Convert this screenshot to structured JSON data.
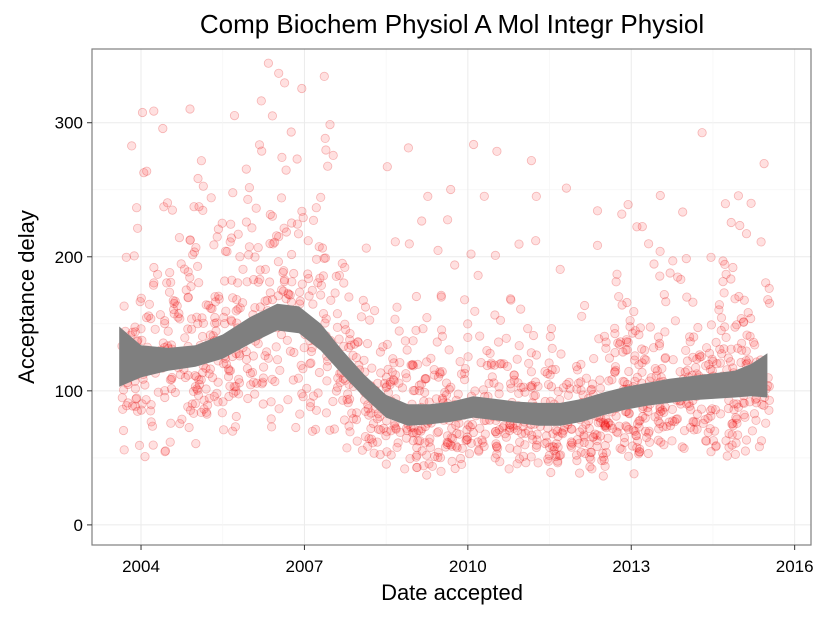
{
  "chart_data": {
    "type": "scatter",
    "title": "Comp Biochem Physiol A Mol Integr Physiol",
    "xlabel": "Date accepted",
    "ylabel": "Acceptance delay",
    "xlim": [
      2003.1,
      2016.3
    ],
    "ylim": [
      -15,
      355
    ],
    "x_ticks": [
      2004,
      2007,
      2010,
      2013,
      2016
    ],
    "x_tick_labels": [
      "2004",
      "2007",
      "2010",
      "2013",
      "2016"
    ],
    "y_ticks": [
      0,
      100,
      200,
      300
    ],
    "y_tick_labels": [
      "0",
      "100",
      "200",
      "300"
    ],
    "grid": true,
    "point_color": "#ff0000",
    "smooth_color": "#7f7f7f",
    "smooth": {
      "x": [
        2003.6,
        2004.0,
        2004.5,
        2005.0,
        2005.5,
        2006.0,
        2006.5,
        2006.9,
        2007.3,
        2007.7,
        2008.1,
        2008.5,
        2008.9,
        2009.3,
        2009.7,
        2010.1,
        2010.5,
        2010.9,
        2011.3,
        2011.7,
        2012.1,
        2012.5,
        2012.9,
        2013.3,
        2013.7,
        2014.1,
        2014.5,
        2014.9,
        2015.2,
        2015.5
      ],
      "lower": [
        103,
        110,
        115,
        118,
        124,
        135,
        145,
        143,
        130,
        112,
        95,
        80,
        74,
        75,
        77,
        80,
        78,
        76,
        74,
        74,
        77,
        82,
        86,
        89,
        91,
        93,
        94,
        95,
        96,
        95
      ],
      "upper": [
        148,
        134,
        132,
        134,
        142,
        155,
        165,
        163,
        150,
        130,
        112,
        97,
        90,
        90,
        92,
        96,
        94,
        92,
        91,
        91,
        94,
        99,
        103,
        106,
        109,
        111,
        113,
        115,
        120,
        128
      ]
    }
  }
}
